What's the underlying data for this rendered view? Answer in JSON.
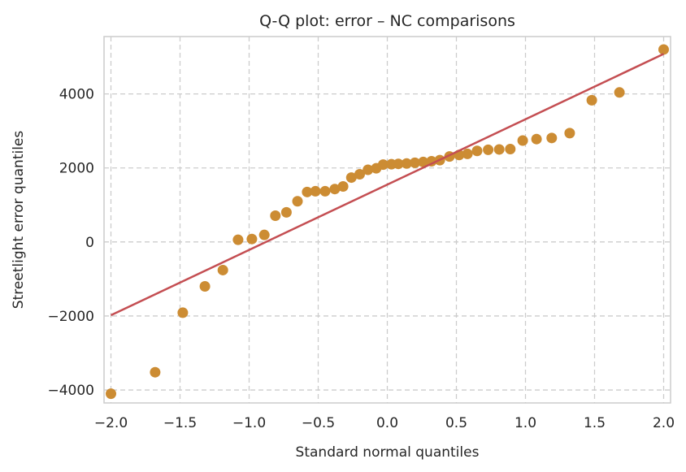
{
  "chart_data": {
    "type": "scatter",
    "title": "Q-Q plot: error – NC comparisons",
    "xlabel": "Standard normal quantiles",
    "ylabel": "Streetlight error quantiles",
    "xlim": [
      -2.05,
      2.05
    ],
    "ylim": [
      -4350,
      5550
    ],
    "xticks": [
      -2.0,
      -1.5,
      -1.0,
      -0.5,
      0.0,
      0.5,
      1.0,
      1.5,
      2.0
    ],
    "xtick_labels": [
      "−2.0",
      "−1.5",
      "−1.0",
      "−0.5",
      "0.0",
      "0.5",
      "1.0",
      "1.5",
      "2.0"
    ],
    "yticks": [
      -4000,
      -2000,
      0,
      2000,
      4000
    ],
    "ytick_labels": [
      "−4000",
      "−2000",
      "0",
      "2000",
      "4000"
    ],
    "grid": true,
    "points_color": "#cc8c33",
    "line_color": "#c44e52",
    "reference_line": {
      "x": [
        -2.0,
        2.0
      ],
      "y": [
        -1980,
        5080
      ]
    },
    "points": [
      {
        "x": -2.0,
        "y": -4100
      },
      {
        "x": -1.68,
        "y": -3520
      },
      {
        "x": -1.48,
        "y": -1910
      },
      {
        "x": -1.32,
        "y": -1200
      },
      {
        "x": -1.19,
        "y": -760
      },
      {
        "x": -1.08,
        "y": 60
      },
      {
        "x": -0.98,
        "y": 80
      },
      {
        "x": -0.89,
        "y": 190
      },
      {
        "x": -0.81,
        "y": 710
      },
      {
        "x": -0.73,
        "y": 800
      },
      {
        "x": -0.65,
        "y": 1100
      },
      {
        "x": -0.58,
        "y": 1350
      },
      {
        "x": -0.52,
        "y": 1370
      },
      {
        "x": -0.45,
        "y": 1370
      },
      {
        "x": -0.38,
        "y": 1430
      },
      {
        "x": -0.32,
        "y": 1500
      },
      {
        "x": -0.26,
        "y": 1740
      },
      {
        "x": -0.2,
        "y": 1830
      },
      {
        "x": -0.14,
        "y": 1950
      },
      {
        "x": -0.08,
        "y": 1990
      },
      {
        "x": -0.03,
        "y": 2090
      },
      {
        "x": 0.03,
        "y": 2100
      },
      {
        "x": 0.08,
        "y": 2110
      },
      {
        "x": 0.14,
        "y": 2120
      },
      {
        "x": 0.2,
        "y": 2140
      },
      {
        "x": 0.26,
        "y": 2160
      },
      {
        "x": 0.32,
        "y": 2180
      },
      {
        "x": 0.38,
        "y": 2210
      },
      {
        "x": 0.45,
        "y": 2310
      },
      {
        "x": 0.52,
        "y": 2350
      },
      {
        "x": 0.58,
        "y": 2380
      },
      {
        "x": 0.65,
        "y": 2460
      },
      {
        "x": 0.73,
        "y": 2490
      },
      {
        "x": 0.81,
        "y": 2500
      },
      {
        "x": 0.89,
        "y": 2510
      },
      {
        "x": 0.98,
        "y": 2740
      },
      {
        "x": 1.08,
        "y": 2780
      },
      {
        "x": 1.19,
        "y": 2810
      },
      {
        "x": 1.32,
        "y": 2940
      },
      {
        "x": 1.48,
        "y": 3830
      },
      {
        "x": 1.68,
        "y": 4040
      },
      {
        "x": 2.0,
        "y": 5200
      }
    ]
  }
}
